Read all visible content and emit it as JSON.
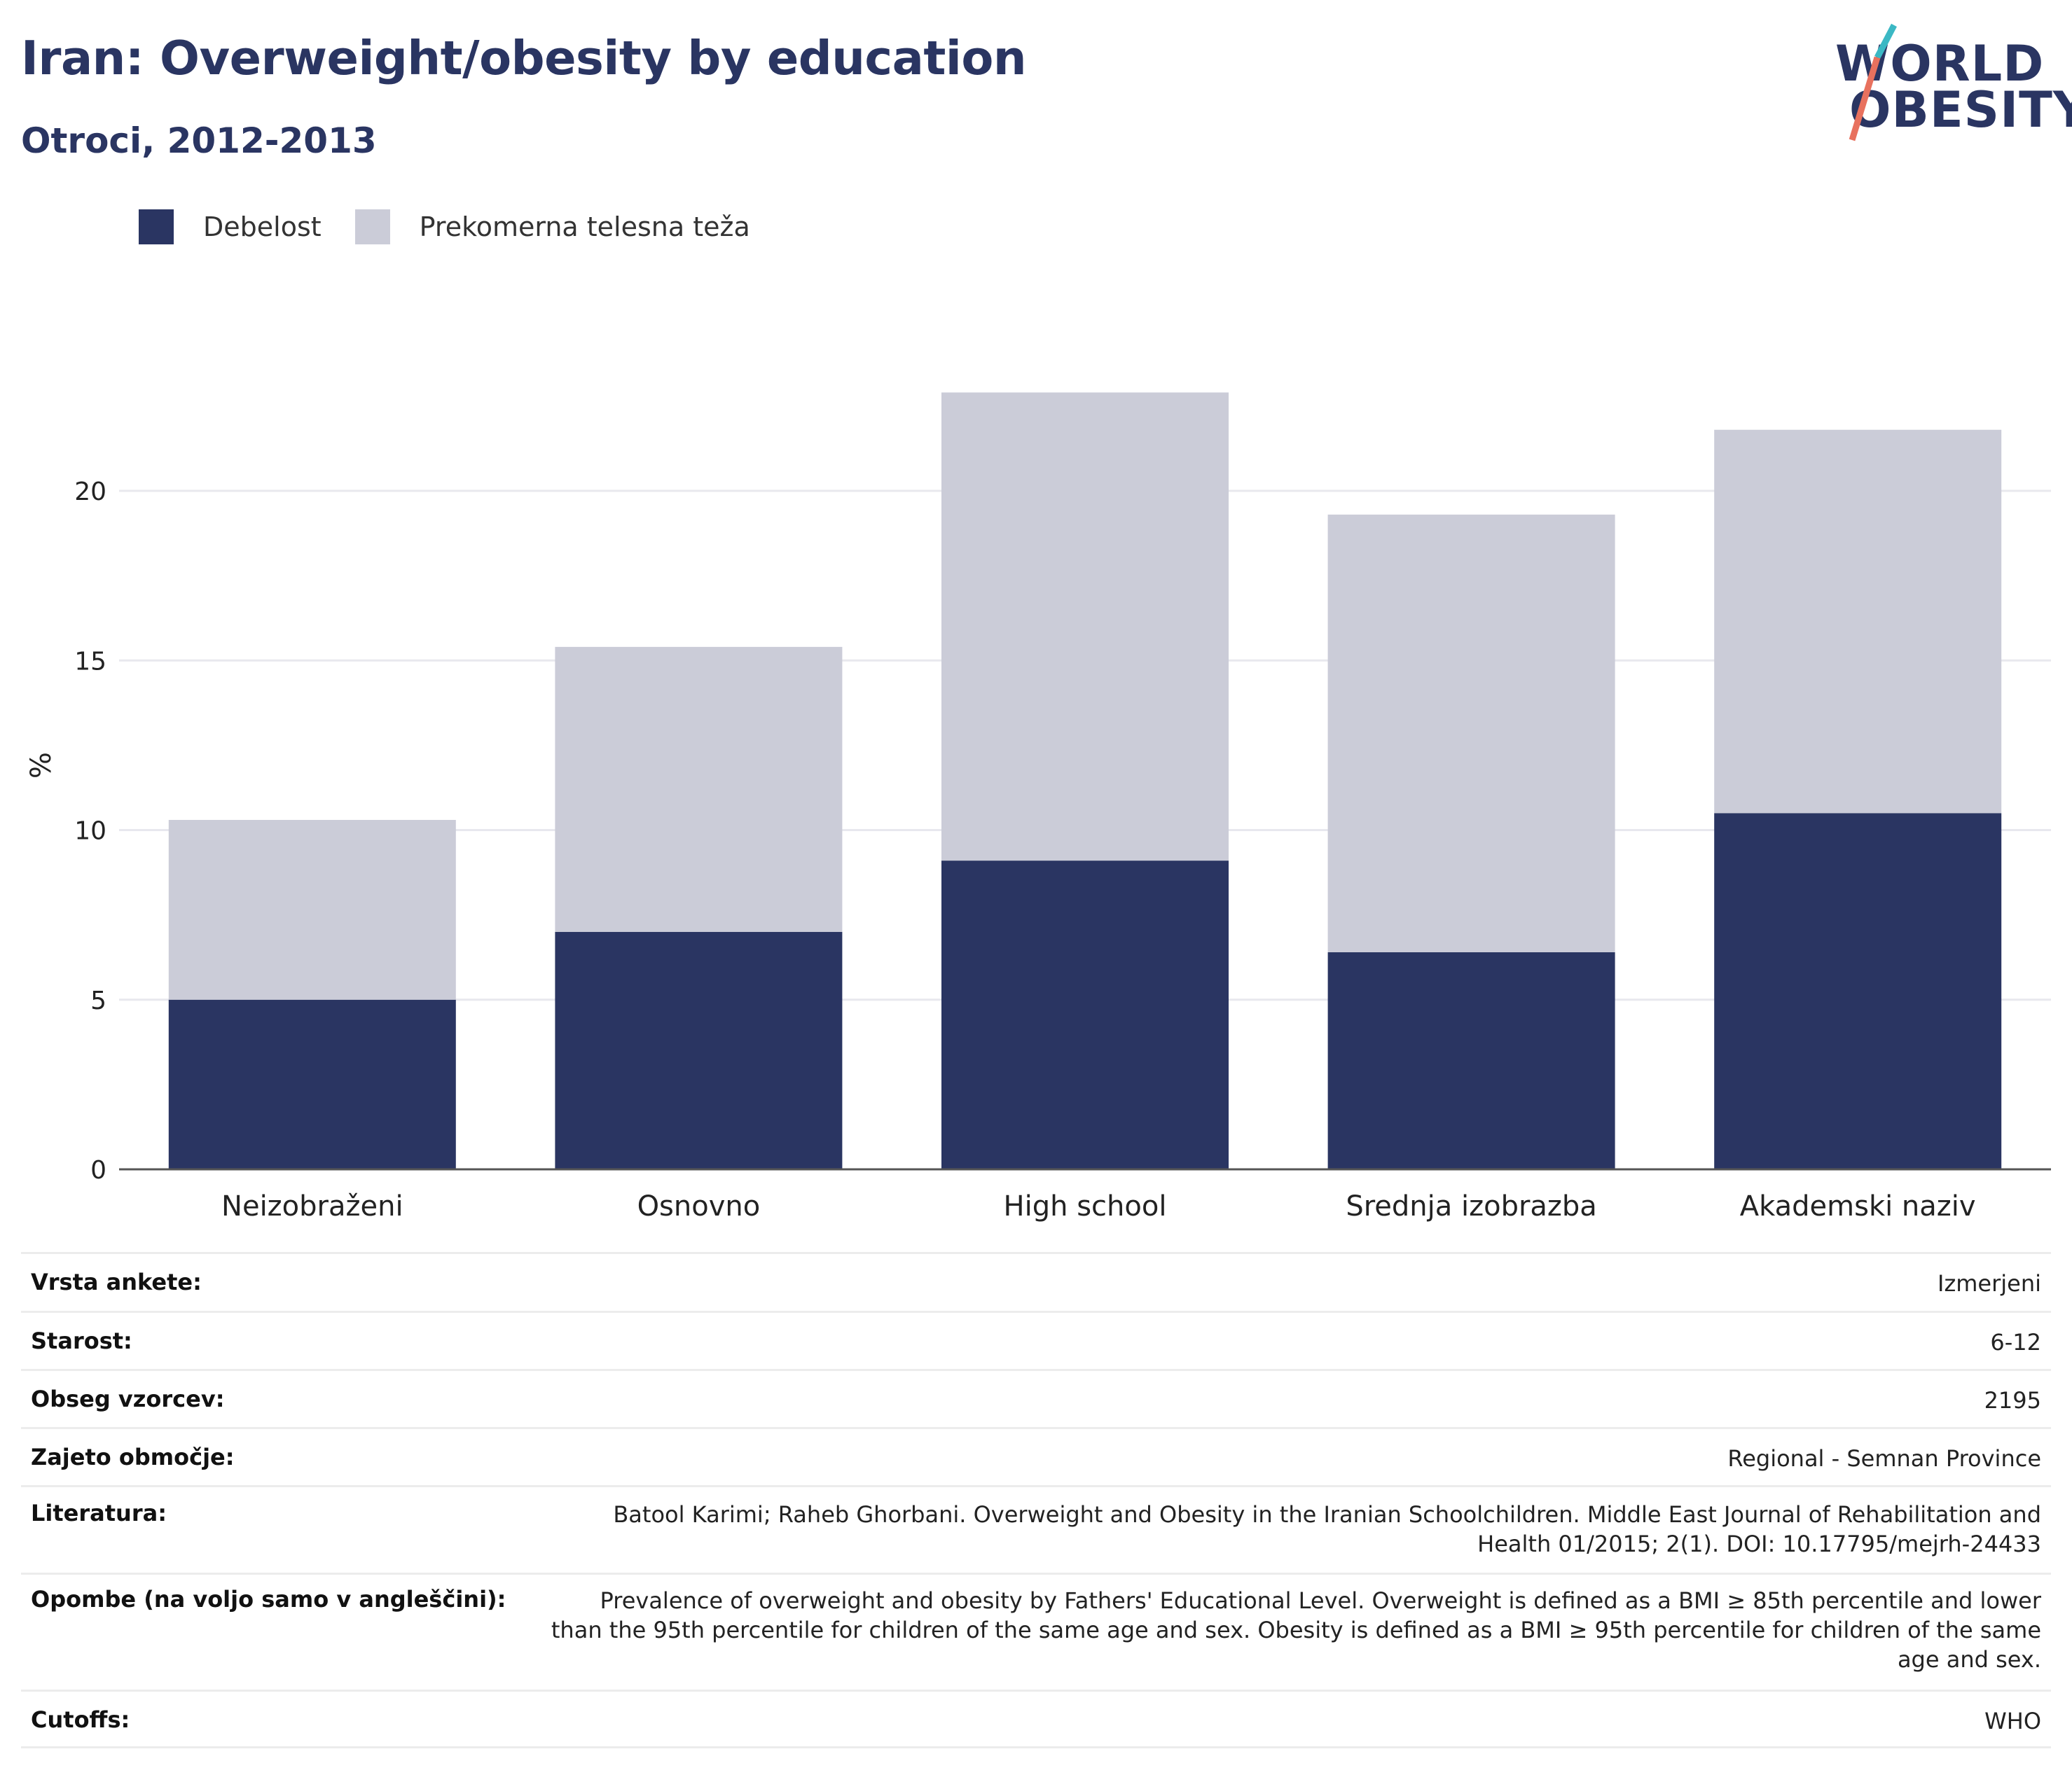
{
  "header": {
    "title": "Iran: Overweight/obesity by education",
    "subtitle": "Otroci, 2012-2013"
  },
  "logo": {
    "line1": "WORLD",
    "line2": "OBESITY",
    "accent_colors": [
      "#3bb8c4",
      "#e8715e"
    ]
  },
  "legend": {
    "items": [
      {
        "label": "Debelost",
        "color": "#2a3562"
      },
      {
        "label": "Prekomerna telesna teža",
        "color": "#cbccd8"
      }
    ]
  },
  "chart_data": {
    "type": "bar",
    "stacked": true,
    "title": "Iran: Overweight/obesity by education",
    "subtitle": "Otroci, 2012-2013",
    "xlabel": "",
    "ylabel": "%",
    "ylim": [
      0,
      24
    ],
    "yticks": [
      0,
      5,
      10,
      15,
      20
    ],
    "grid": true,
    "legend_position": "top-left",
    "categories": [
      "Neizobraženi",
      "Osnovno",
      "High school",
      "Srednja izobrazba",
      "Akademski naziv"
    ],
    "series": [
      {
        "name": "Debelost",
        "color": "#2a3562",
        "values": [
          5.0,
          7.0,
          9.1,
          6.4,
          10.5
        ]
      },
      {
        "name": "Prekomerna telesna teža",
        "color": "#cbccd8",
        "values": [
          5.3,
          8.4,
          13.8,
          12.9,
          11.3
        ]
      }
    ]
  },
  "info": {
    "rows": [
      {
        "label": "Vrsta ankete:",
        "value": "Izmerjeni"
      },
      {
        "label": "Starost:",
        "value": "6-12"
      },
      {
        "label": "Obseg vzorcev:",
        "value": "2195"
      },
      {
        "label": "Zajeto območje:",
        "value": "Regional - Semnan Province"
      },
      {
        "label": "Literatura:",
        "value": "Batool Karimi; Raheb Ghorbani. Overweight and Obesity in the Iranian Schoolchildren. Middle East Journal of Rehabilitation and Health 01/2015; 2(1). DOI: 10.17795/mejrh-24433"
      },
      {
        "label": "Opombe (na voljo samo v angleščini):",
        "value": "Prevalence of overweight and obesity by Fathers' Educational Level. Overweight is defined as a BMI ≥ 85th percentile and lower than the 95th percentile for children of the same age and sex. Obesity is defined as a BMI ≥ 95th percentile for children of the same age and sex."
      },
      {
        "label": "Cutoffs:",
        "value": "WHO"
      }
    ]
  }
}
